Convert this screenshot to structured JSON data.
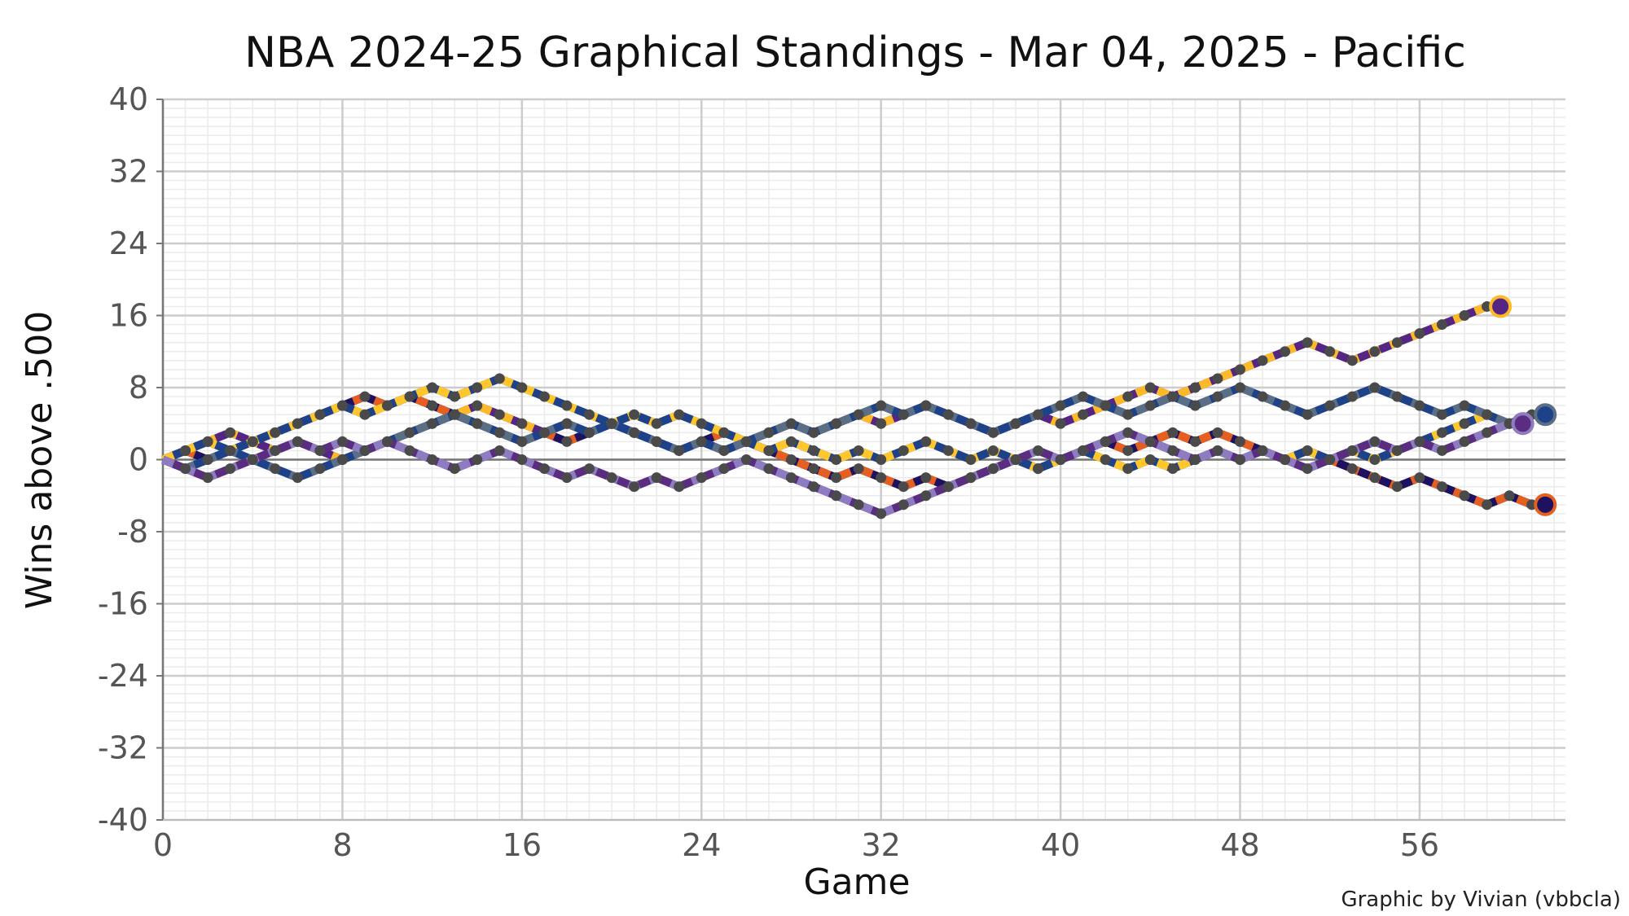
{
  "chart_data": {
    "type": "line",
    "title": "NBA 2024-25 Graphical Standings - Mar 04, 2025 - Pacific",
    "xlabel": "Game",
    "ylabel": "Wins above .500",
    "caption": "Graphic by Vivian (vbbcla)",
    "xlim": [
      0,
      62.5
    ],
    "ylim": [
      -40,
      40
    ],
    "xticks": [
      0,
      8,
      16,
      24,
      32,
      40,
      48,
      56
    ],
    "yticks": [
      -40,
      -32,
      -24,
      -16,
      -8,
      0,
      8,
      16,
      24,
      32,
      40
    ],
    "grid": true,
    "point_color": "#4a4a4a",
    "series": [
      {
        "colors": [
          "#552583",
          "#FDB927"
        ],
        "values": [
          0,
          1,
          2,
          3,
          2,
          1,
          2,
          1,
          0,
          1,
          2,
          3,
          4,
          5,
          6,
          5,
          4,
          3,
          4,
          3,
          4,
          3,
          2,
          1,
          2,
          1,
          2,
          3,
          4,
          3,
          4,
          5,
          4,
          5,
          6,
          5,
          4,
          3,
          4,
          5,
          4,
          5,
          6,
          7,
          8,
          7,
          8,
          9,
          10,
          11,
          12,
          13,
          12,
          11,
          12,
          13,
          14,
          15,
          16,
          17
        ]
      },
      {
        "colors": [
          "#1D1160",
          "#E56020"
        ],
        "values": [
          0,
          1,
          0,
          1,
          2,
          3,
          4,
          5,
          6,
          7,
          6,
          7,
          6,
          5,
          4,
          3,
          2,
          3,
          2,
          3,
          4,
          3,
          2,
          1,
          2,
          3,
          2,
          1,
          0,
          -1,
          -2,
          -1,
          -2,
          -3,
          -2,
          -3,
          -2,
          -1,
          0,
          -1,
          0,
          1,
          2,
          1,
          2,
          3,
          2,
          3,
          2,
          1,
          0,
          1,
          0,
          -1,
          -2,
          -3,
          -2,
          -3,
          -4,
          -5,
          -4,
          -5
        ]
      },
      {
        "colors": [
          "#1D428A",
          "#FFC72C"
        ],
        "values": [
          0,
          1,
          2,
          1,
          2,
          3,
          4,
          5,
          6,
          5,
          6,
          7,
          8,
          7,
          8,
          9,
          8,
          7,
          6,
          5,
          4,
          5,
          4,
          5,
          4,
          3,
          2,
          1,
          2,
          1,
          0,
          1,
          0,
          1,
          2,
          1,
          0,
          1,
          0,
          -1,
          0,
          1,
          0,
          -1,
          0,
          -1,
          0,
          1,
          0,
          1,
          0,
          1,
          0,
          1,
          0,
          1,
          2,
          3,
          4,
          5,
          4
        ]
      },
      {
        "colors": [
          "#1D428A",
          "#5A6E85"
        ],
        "values": [
          0,
          -1,
          0,
          1,
          0,
          -1,
          -2,
          -1,
          0,
          1,
          2,
          3,
          4,
          5,
          4,
          3,
          2,
          3,
          4,
          3,
          4,
          3,
          2,
          1,
          2,
          1,
          2,
          3,
          4,
          3,
          4,
          5,
          6,
          5,
          6,
          5,
          4,
          3,
          4,
          5,
          6,
          7,
          6,
          5,
          6,
          7,
          6,
          7,
          8,
          7,
          6,
          5,
          6,
          7,
          8,
          7,
          6,
          5,
          6,
          5,
          4,
          5
        ]
      },
      {
        "colors": [
          "#5A2D81",
          "#8E7CC3"
        ],
        "values": [
          0,
          -1,
          -2,
          -1,
          0,
          1,
          2,
          1,
          2,
          1,
          2,
          1,
          0,
          -1,
          0,
          1,
          0,
          -1,
          -2,
          -1,
          -2,
          -3,
          -2,
          -3,
          -2,
          -1,
          0,
          -1,
          -2,
          -3,
          -4,
          -5,
          -6,
          -5,
          -4,
          -3,
          -2,
          -1,
          0,
          1,
          0,
          1,
          2,
          3,
          2,
          1,
          0,
          1,
          0,
          1,
          0,
          -1,
          0,
          1,
          2,
          1,
          2,
          1,
          2,
          3,
          4
        ]
      }
    ]
  }
}
